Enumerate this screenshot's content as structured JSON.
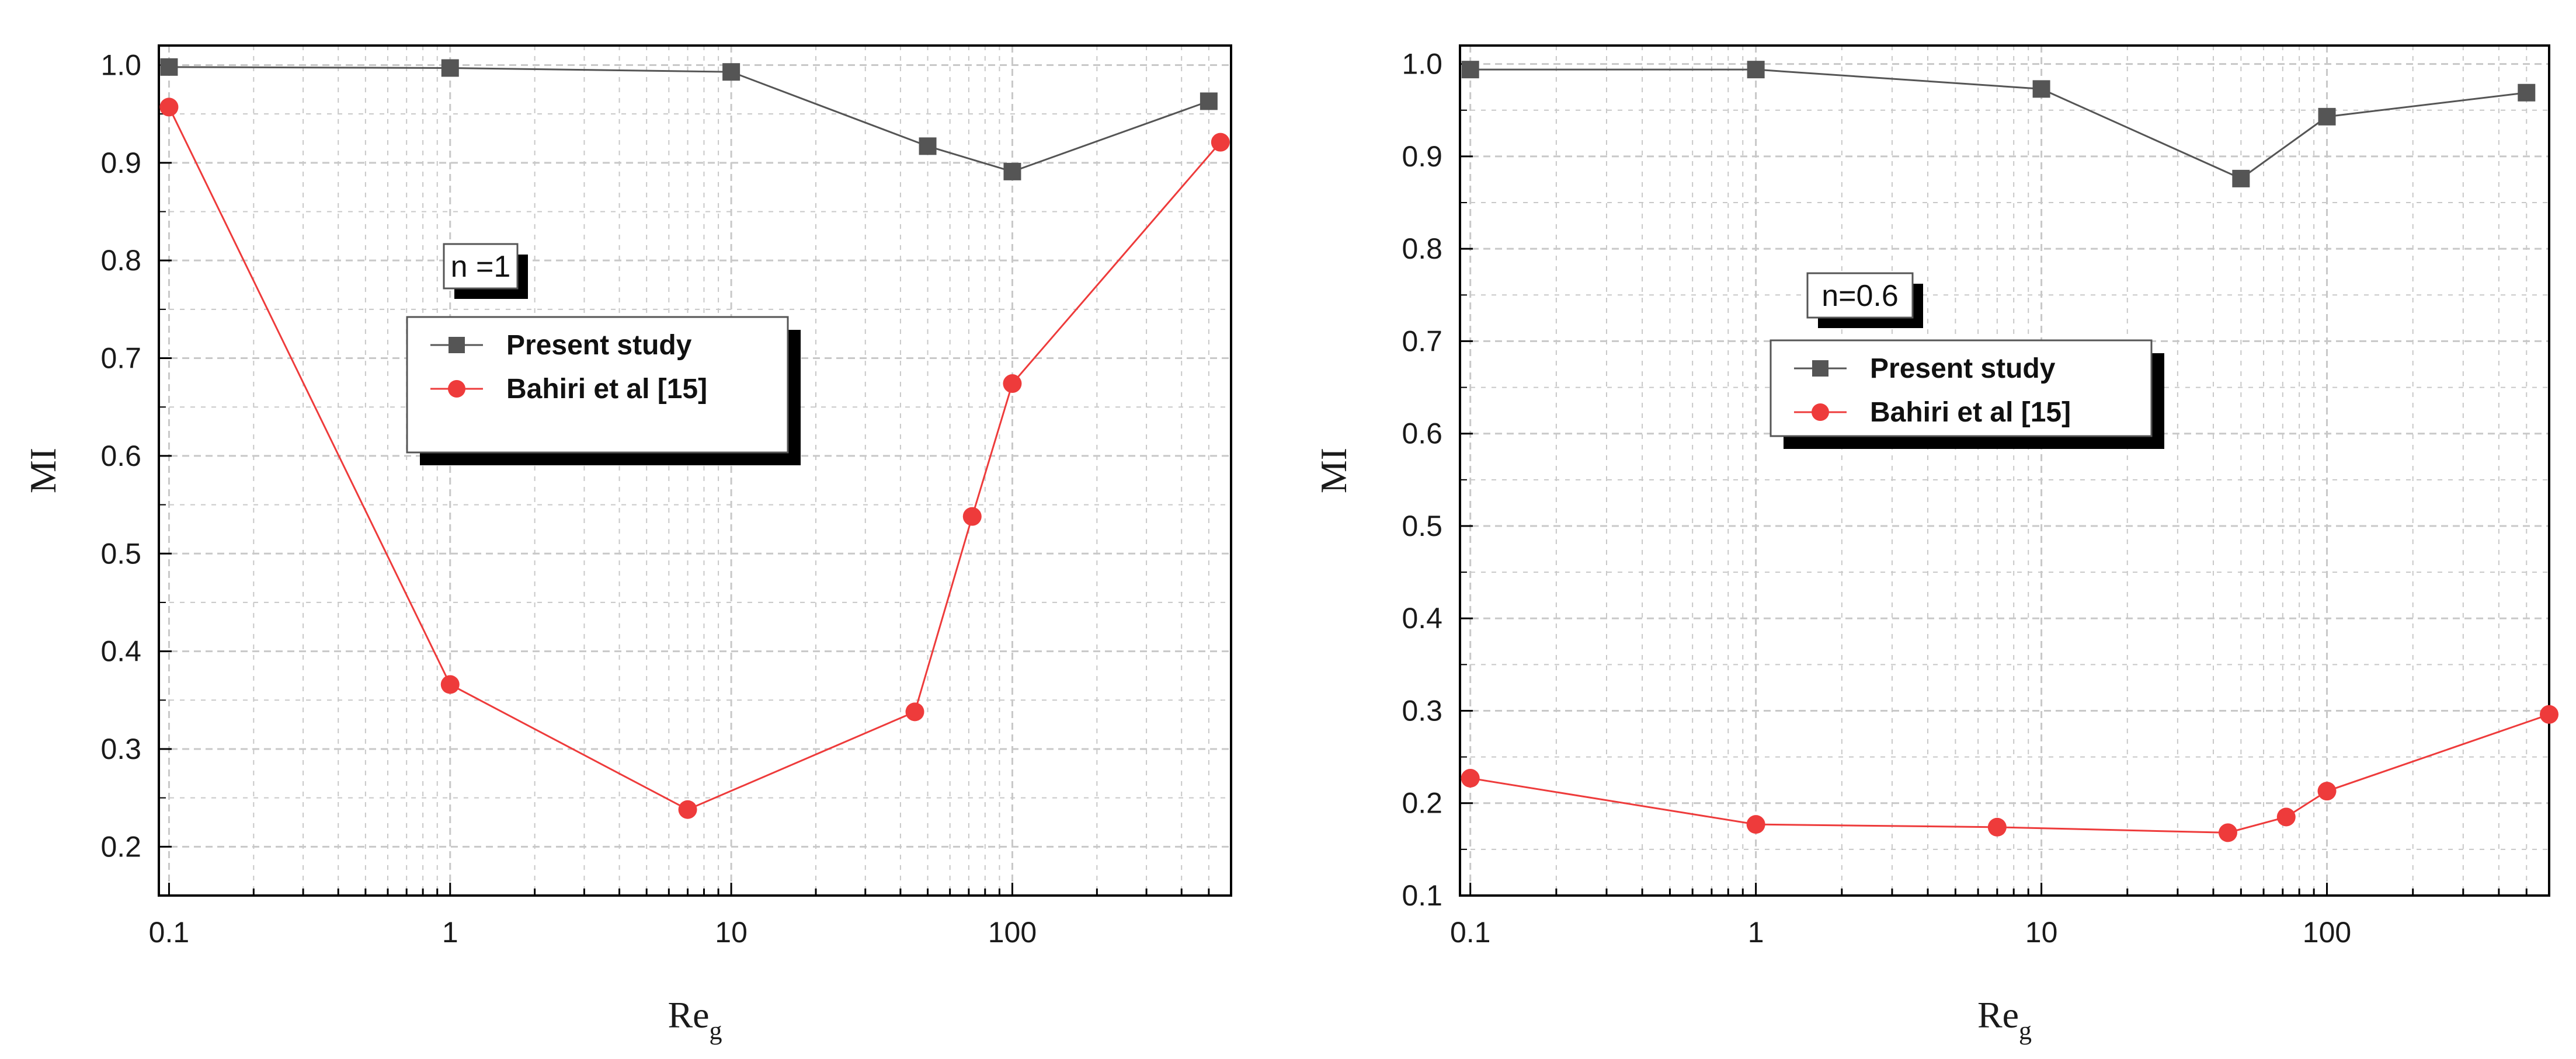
{
  "colors": {
    "present_study": "#555555",
    "bahiri": "#ee3b3b",
    "grid": "#c8c8c8",
    "axis": "#000000"
  },
  "chart_data": [
    {
      "type": "line",
      "annotation": "n =1",
      "xlabel_main": "Re",
      "xlabel_sub": "g",
      "ylabel": "MI",
      "xscale": "log",
      "xlim": [
        0.092,
        600
      ],
      "ylim": [
        0.15,
        1.02
      ],
      "xticks": [
        0.1,
        1,
        10,
        100
      ],
      "xtick_labels": [
        "0.1",
        "1",
        "10",
        "100"
      ],
      "yticks": [
        0.2,
        0.3,
        0.4,
        0.5,
        0.6,
        0.7,
        0.8,
        0.9,
        1.0
      ],
      "ytick_labels": [
        "0.2",
        "0.3",
        "0.4",
        "0.5",
        "0.6",
        "0.7",
        "0.8",
        "0.9",
        "1.0"
      ],
      "grid": true,
      "legend_position": "upper-middle",
      "series": [
        {
          "name": "Present study",
          "marker": "square",
          "color": "#555555",
          "x": [
            0.1,
            1,
            10,
            50,
            100,
            500
          ],
          "y": [
            0.998,
            0.997,
            0.993,
            0.917,
            0.891,
            0.963
          ]
        },
        {
          "name": "Bahiri et al [15]",
          "marker": "circle",
          "color": "#ee3b3b",
          "x": [
            0.1,
            1,
            7,
            45,
            72,
            100,
            550
          ],
          "y": [
            0.957,
            0.366,
            0.238,
            0.338,
            0.538,
            0.674,
            0.921
          ]
        }
      ]
    },
    {
      "type": "line",
      "annotation": "n=0.6",
      "xlabel_main": "Re",
      "xlabel_sub": "g",
      "ylabel": "MI",
      "xscale": "log",
      "xlim": [
        0.092,
        600
      ],
      "ylim": [
        0.1,
        1.02
      ],
      "xticks": [
        0.1,
        1,
        10,
        100
      ],
      "xtick_labels": [
        "0.1",
        "1",
        "10",
        "100"
      ],
      "yticks": [
        0.1,
        0.2,
        0.3,
        0.4,
        0.5,
        0.6,
        0.7,
        0.8,
        0.9,
        1.0
      ],
      "ytick_labels": [
        "0.1",
        "0.2",
        "0.3",
        "0.4",
        "0.5",
        "0.6",
        "0.7",
        "0.8",
        "0.9",
        "1.0"
      ],
      "grid": true,
      "legend_position": "upper-middle",
      "series": [
        {
          "name": "Present study",
          "marker": "square",
          "color": "#555555",
          "x": [
            0.1,
            1,
            10,
            50,
            100,
            500
          ],
          "y": [
            0.994,
            0.994,
            0.973,
            0.876,
            0.943,
            0.969
          ]
        },
        {
          "name": "Bahiri et al [15]",
          "marker": "circle",
          "color": "#ee3b3b",
          "x": [
            0.1,
            1,
            7,
            45,
            72,
            100,
            600
          ],
          "y": [
            0.227,
            0.177,
            0.174,
            0.168,
            0.185,
            0.213,
            0.296
          ]
        }
      ]
    }
  ]
}
